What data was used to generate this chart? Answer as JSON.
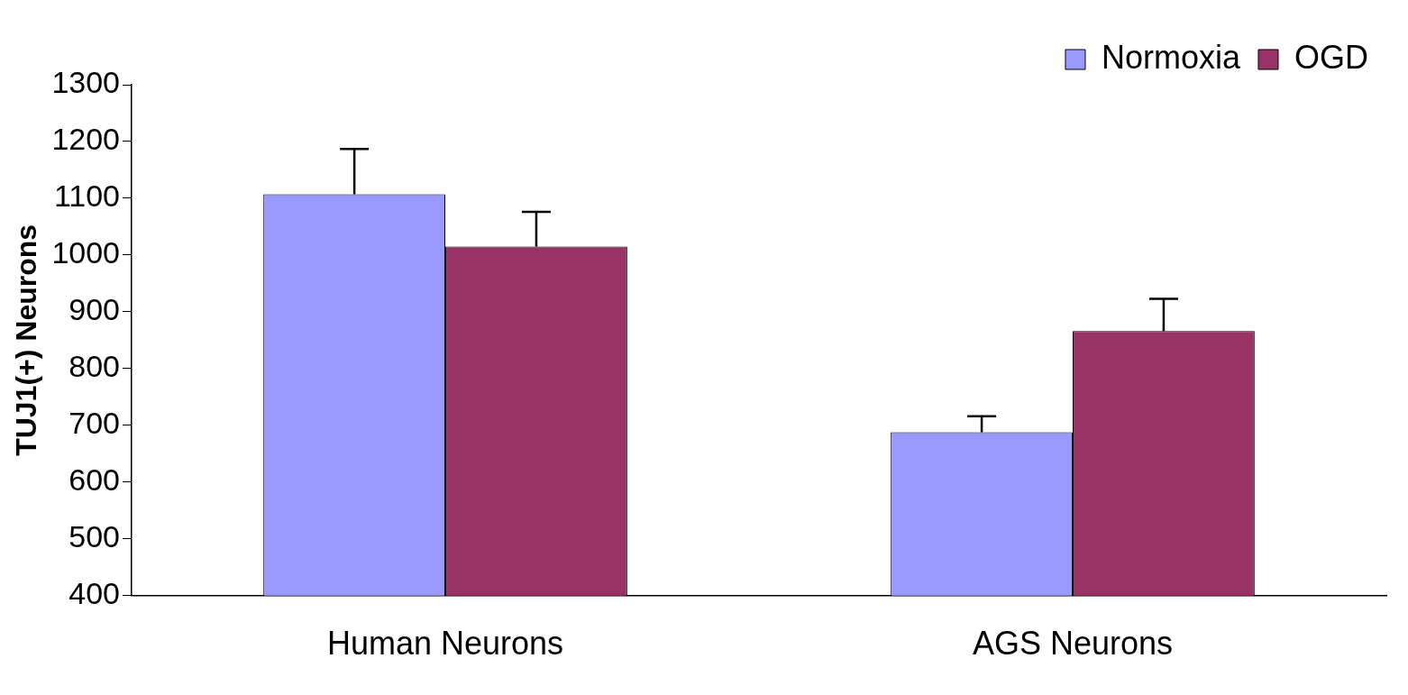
{
  "chart_data": {
    "type": "bar",
    "ylabel": "TUJ1(+) Neurons",
    "categories": [
      "Human Neurons",
      "AGS Neurons"
    ],
    "series": [
      {
        "name": "Normoxia",
        "color": "#9999ff",
        "values": [
          1107,
          688
        ],
        "errors": [
          [
            1107,
            1187
          ],
          [
            688,
            716
          ]
        ]
      },
      {
        "name": "OGD",
        "color": "#993366",
        "values": [
          1015,
          866
        ],
        "errors": [
          [
            1015,
            1076
          ],
          [
            866,
            923
          ]
        ]
      }
    ],
    "ylim": [
      400,
      1300
    ],
    "yticks": [
      400,
      500,
      600,
      700,
      800,
      900,
      1000,
      1100,
      1200,
      1300
    ],
    "grid": false,
    "legend": "top right"
  }
}
